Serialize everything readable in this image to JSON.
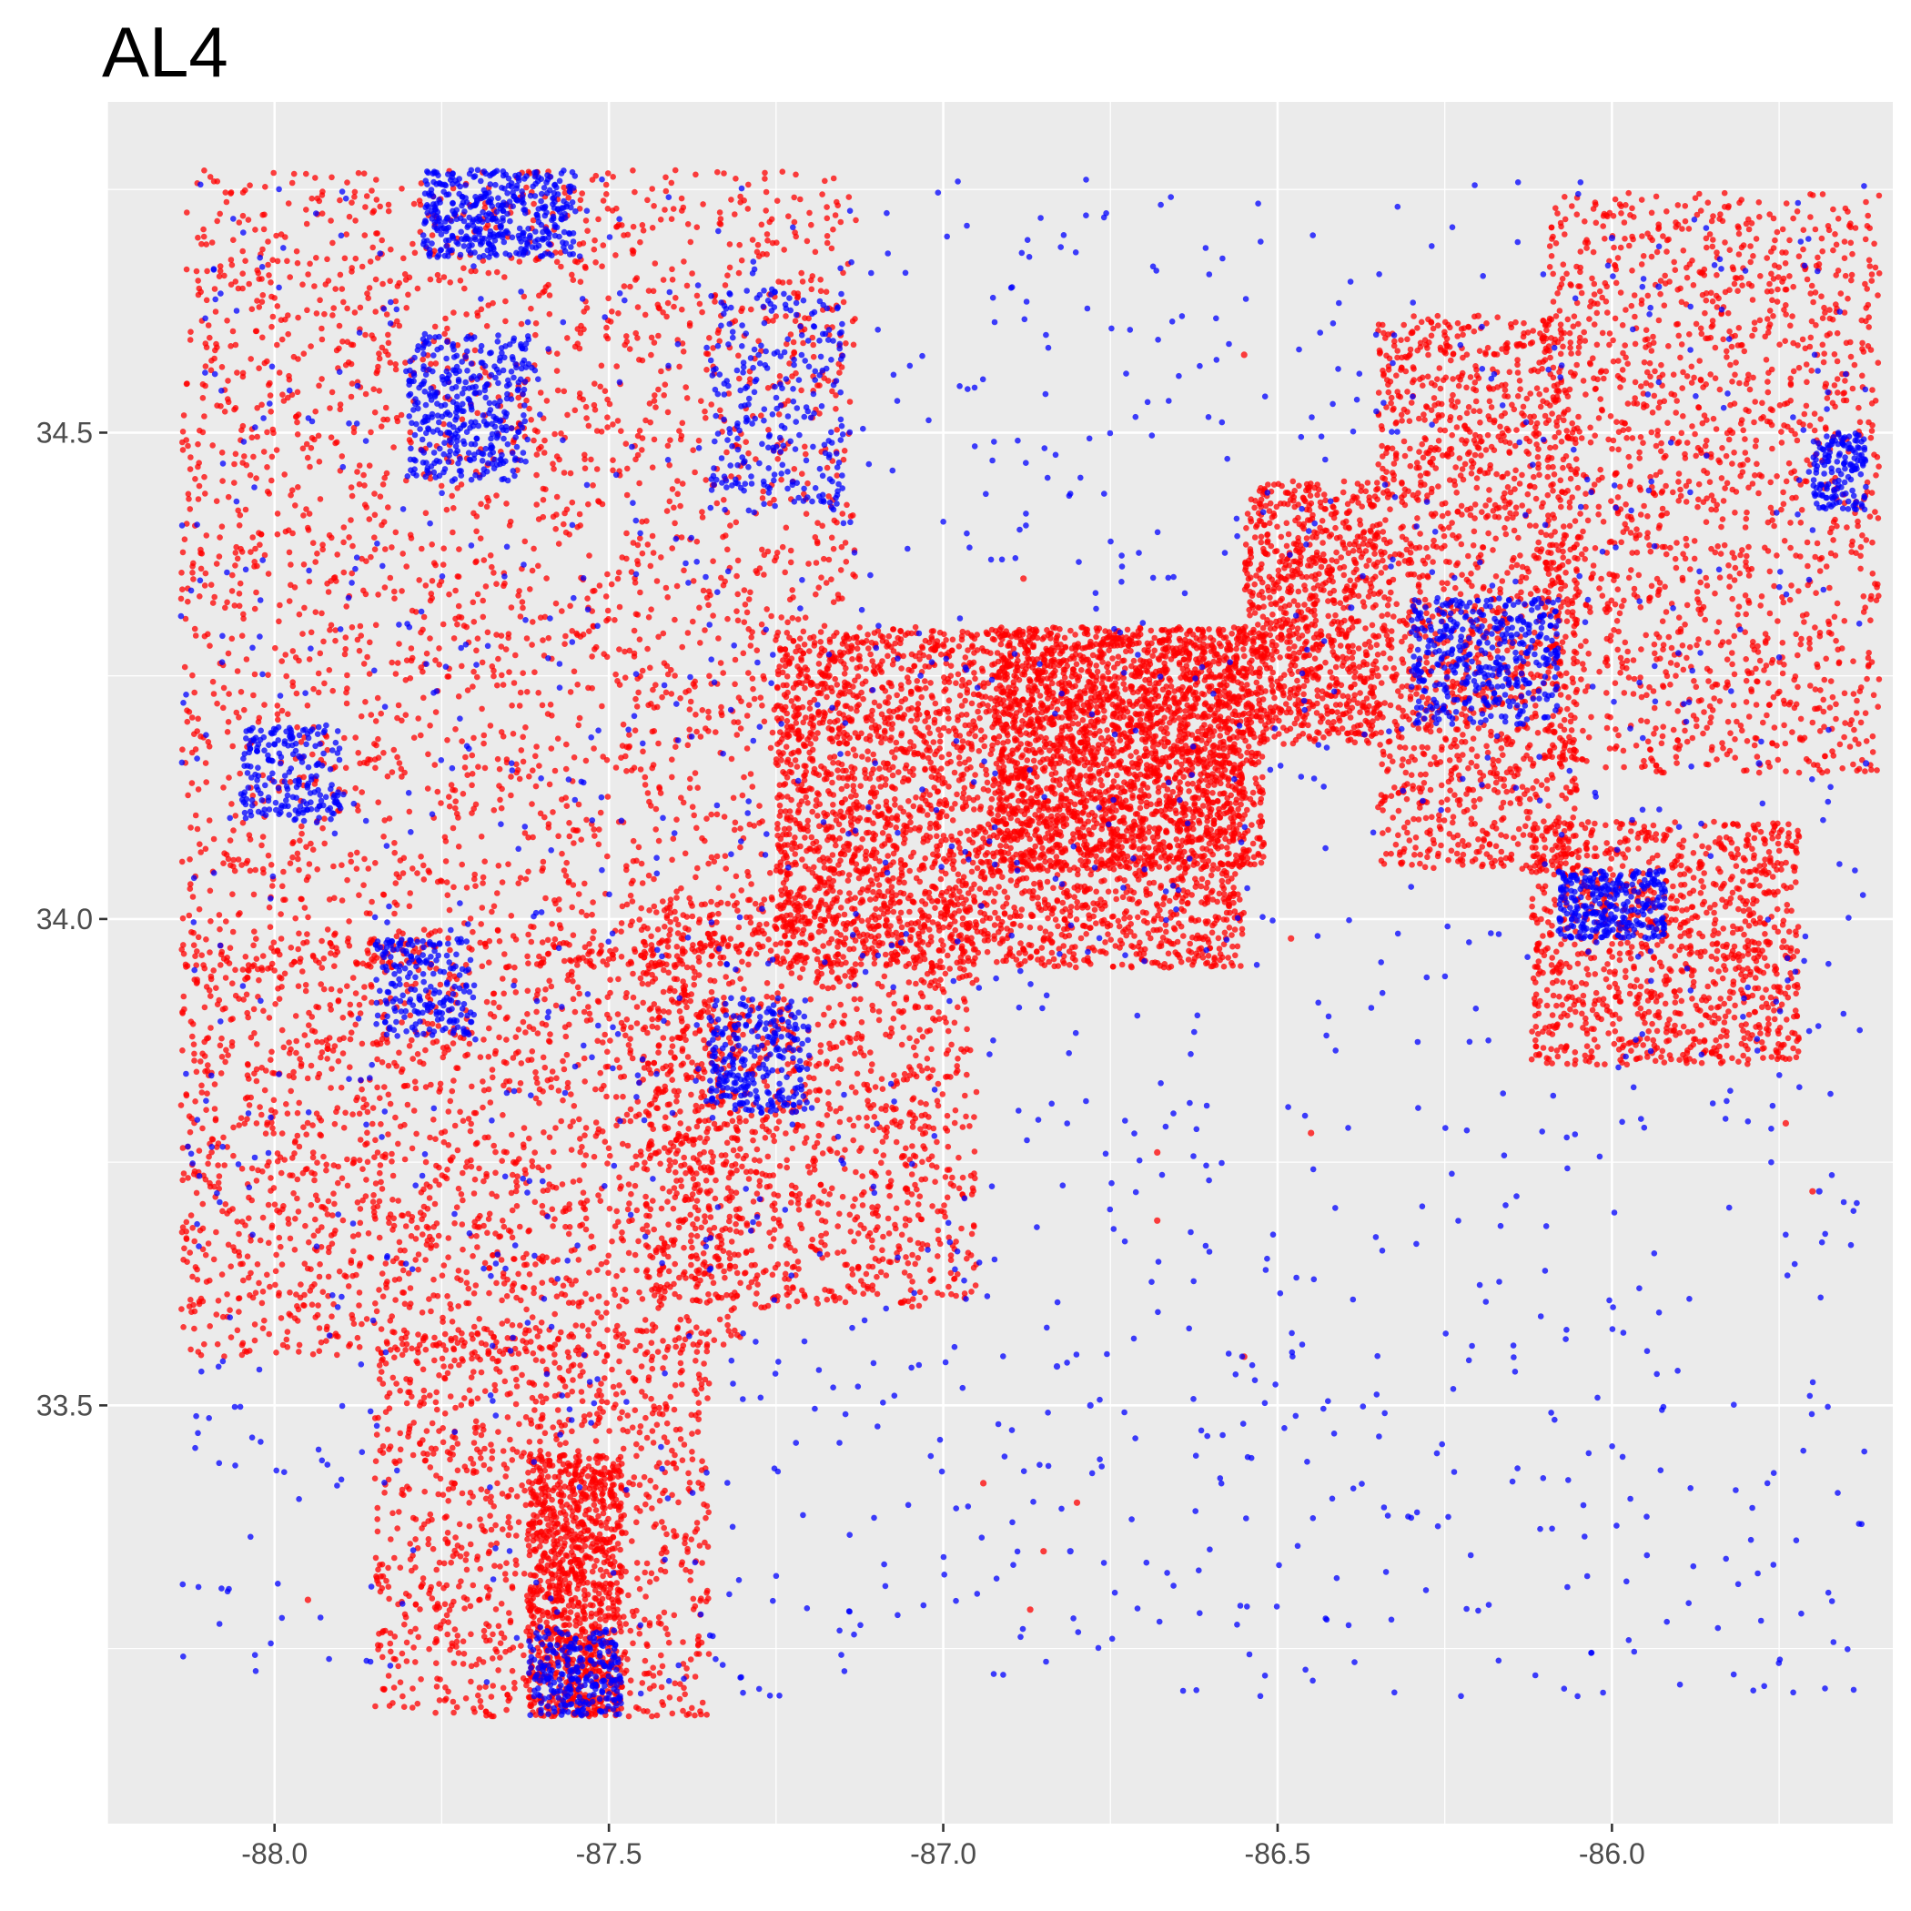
{
  "chart_data": {
    "type": "scatter",
    "title": "AL4",
    "xlabel": "",
    "ylabel": "",
    "xlim": [
      -88.25,
      -85.58
    ],
    "ylim": [
      33.07,
      34.84
    ],
    "grid": true,
    "legend": "none",
    "x_ticks": [
      -88.0,
      -87.5,
      -87.0,
      -86.5,
      -86.0
    ],
    "x_tick_labels": [
      "-88.0",
      "-87.5",
      "-87.0",
      "-86.5",
      "-86.0"
    ],
    "y_ticks": [
      33.5,
      34.0,
      34.5
    ],
    "y_tick_labels": [
      "33.5",
      "34.0",
      "34.5"
    ],
    "colors": {
      "panel_background": "#ebebeb",
      "grid_major": "#ffffff",
      "series_a": "#ff0000",
      "series_b": "#0000ff"
    },
    "series": [
      {
        "color": "#ff0000",
        "density_regions": [
          {
            "x": [
              -88.14,
              -87.13
            ],
            "y": [
              33.95,
              34.77
            ],
            "n": 2600
          },
          {
            "x": [
              -88.14,
              -87.3
            ],
            "y": [
              33.55,
              33.98
            ],
            "n": 1800
          },
          {
            "x": [
              -87.85,
              -87.35
            ],
            "y": [
              33.18,
              33.58
            ],
            "n": 1100
          },
          {
            "x": [
              -87.62,
              -87.48
            ],
            "y": [
              33.18,
              33.45
            ],
            "n": 900
          },
          {
            "x": [
              -87.45,
              -86.95
            ],
            "y": [
              33.6,
              34.02
            ],
            "n": 1300
          },
          {
            "x": [
              -87.25,
              -86.55
            ],
            "y": [
              33.95,
              34.3
            ],
            "n": 3200
          },
          {
            "x": [
              -86.92,
              -86.52
            ],
            "y": [
              34.05,
              34.3
            ],
            "n": 1600
          },
          {
            "x": [
              -86.55,
              -86.35
            ],
            "y": [
              34.18,
              34.45
            ],
            "n": 900
          },
          {
            "x": [
              -86.35,
              -86.05
            ],
            "y": [
              34.05,
              34.62
            ],
            "n": 1500
          },
          {
            "x": [
              -86.1,
              -85.6
            ],
            "y": [
              34.15,
              34.75
            ],
            "n": 1500
          },
          {
            "x": [
              -86.12,
              -85.72
            ],
            "y": [
              33.85,
              34.1
            ],
            "n": 1100
          }
        ],
        "sparse_points": [
          [
            -86.68,
            33.76
          ],
          [
            -86.68,
            33.69
          ],
          [
            -86.55,
            33.55
          ],
          [
            -86.8,
            33.4
          ],
          [
            -86.85,
            33.35
          ],
          [
            -86.87,
            33.29
          ],
          [
            -86.94,
            33.42
          ],
          [
            -86.88,
            34.35
          ],
          [
            -86.35,
            34.25
          ],
          [
            -86.45,
            33.78
          ],
          [
            -85.74,
            33.79
          ],
          [
            -85.7,
            33.72
          ],
          [
            -85.68,
            34.55
          ],
          [
            -85.82,
            34.5
          ],
          [
            -86.2,
            34.62
          ],
          [
            -87.95,
            33.3
          ],
          [
            -86.48,
            33.98
          ],
          [
            -86.55,
            34.58
          ]
        ]
      },
      {
        "color": "#0000ff",
        "density_regions": [
          {
            "x": [
              -87.78,
              -87.55
            ],
            "y": [
              34.68,
              34.77
            ],
            "n": 400
          },
          {
            "x": [
              -87.8,
              -87.62
            ],
            "y": [
              34.45,
              34.6
            ],
            "n": 350
          },
          {
            "x": [
              -87.35,
              -87.15
            ],
            "y": [
              34.42,
              34.65
            ],
            "n": 250
          },
          {
            "x": [
              -88.05,
              -87.9
            ],
            "y": [
              34.1,
              34.2
            ],
            "n": 200
          },
          {
            "x": [
              -87.85,
              -87.7
            ],
            "y": [
              33.88,
              33.98
            ],
            "n": 200
          },
          {
            "x": [
              -87.35,
              -87.2
            ],
            "y": [
              33.8,
              33.92
            ],
            "n": 250
          },
          {
            "x": [
              -87.62,
              -87.48
            ],
            "y": [
              33.18,
              33.27
            ],
            "n": 250
          },
          {
            "x": [
              -86.3,
              -86.08
            ],
            "y": [
              34.2,
              34.33
            ],
            "n": 400
          },
          {
            "x": [
              -86.08,
              -85.92
            ],
            "y": [
              33.98,
              34.05
            ],
            "n": 300
          },
          {
            "x": [
              -85.7,
              -85.62
            ],
            "y": [
              34.42,
              34.5
            ],
            "n": 150
          },
          {
            "x": [
              -88.14,
              -85.62
            ],
            "y": [
              33.2,
              34.77
            ],
            "n": 1500
          }
        ],
        "sparse_points": [
          [
            -86.83,
            33.54
          ],
          [
            -86.78,
            33.5
          ],
          [
            -86.81,
            33.35
          ],
          [
            -85.93,
            34.65
          ],
          [
            -85.78,
            34.16
          ],
          [
            -85.69,
            33.72
          ],
          [
            -85.62,
            34.16
          ],
          [
            -86.39,
            34.32
          ],
          [
            -86.0,
            34.7
          ]
        ]
      }
    ]
  }
}
